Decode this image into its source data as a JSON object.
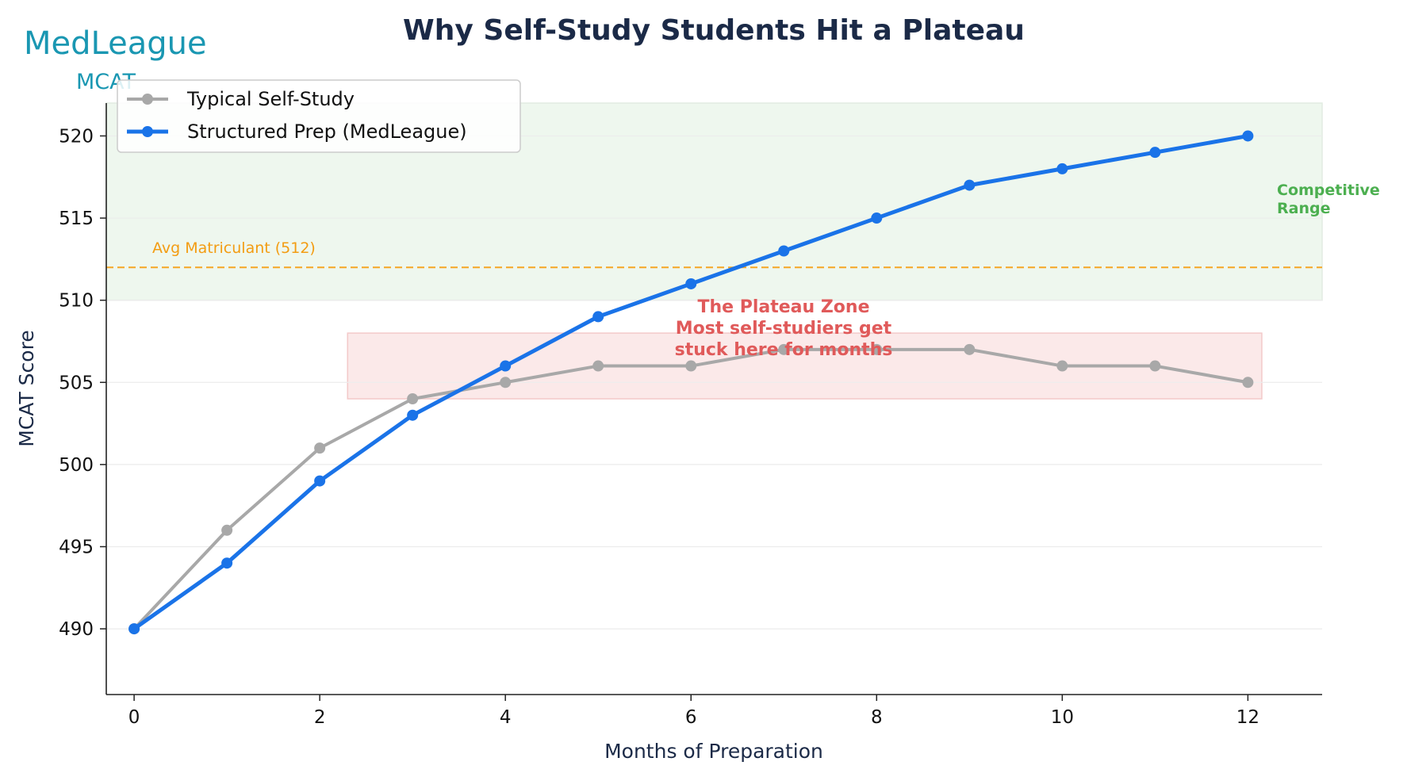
{
  "logo": {
    "brand": "MedLeague",
    "sub": "MCAT"
  },
  "chart_data": {
    "type": "line",
    "title": "Why Self-Study Students Hit a Plateau",
    "xlabel": "Months of Preparation",
    "ylabel": "MCAT Score",
    "xlim": [
      -0.3,
      12.8
    ],
    "ylim": [
      486,
      522
    ],
    "xticks": [
      0,
      2,
      4,
      6,
      8,
      10,
      12
    ],
    "yticks": [
      490,
      495,
      500,
      505,
      510,
      515,
      520
    ],
    "x": [
      0,
      1,
      2,
      3,
      4,
      5,
      6,
      7,
      8,
      9,
      10,
      11,
      12
    ],
    "series": [
      {
        "name": "Typical Self-Study",
        "color": "#a8a8a8",
        "values": [
          490,
          496,
          501,
          504,
          505,
          506,
          506,
          507,
          507,
          507,
          506,
          506,
          505
        ]
      },
      {
        "name": "Structured Prep (MedLeague)",
        "color": "#1a73e8",
        "values": [
          490,
          494,
          499,
          503,
          506,
          509,
          511,
          513,
          515,
          517,
          518,
          519,
          520
        ]
      }
    ],
    "reference_line": {
      "label": "Avg Matriculant (512)",
      "y": 512,
      "color": "#f5a623"
    },
    "bands": [
      {
        "label": "Competitive\nRange",
        "y": [
          510,
          522
        ],
        "x": [
          -0.3,
          12.8
        ],
        "color": "#eef7ee",
        "label_color": "#4caf50"
      },
      {
        "label": "The Plateau Zone\nMost self-studiers get\nstuck here for months",
        "y": [
          504,
          508
        ],
        "x": [
          2.3,
          12.15
        ],
        "color": "#fbe9e9",
        "label_color": "#e05a5a"
      }
    ],
    "grid": "y",
    "legend": "upper-left"
  }
}
